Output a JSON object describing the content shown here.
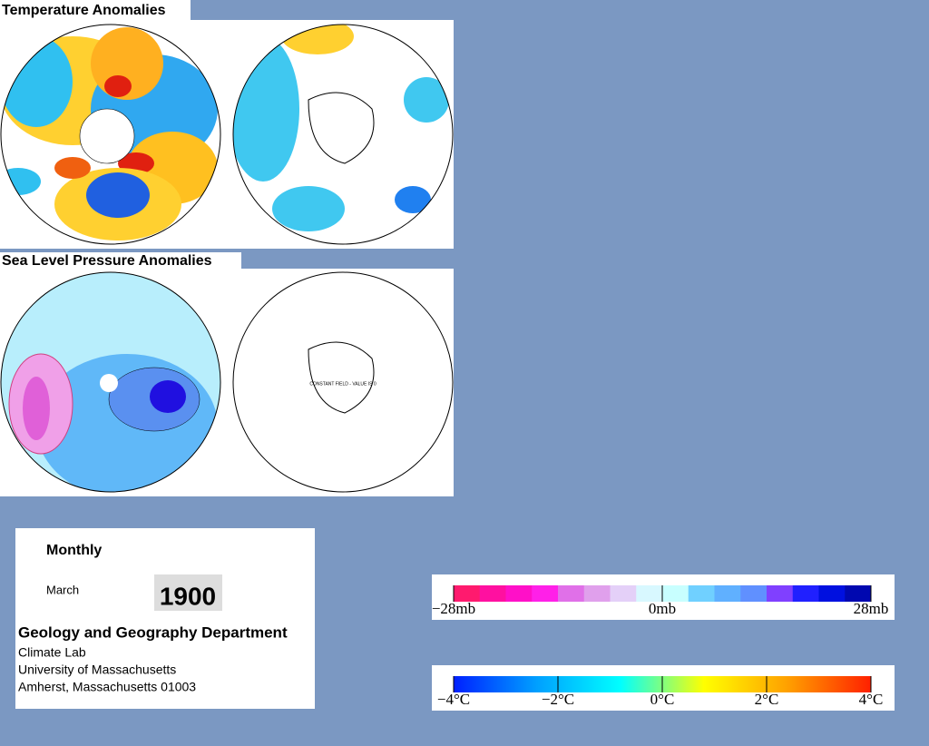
{
  "panels": [
    {
      "title": "Temperature Anomalies"
    },
    {
      "title": "Sea Level Pressure Anomalies",
      "note": "CONSTANT FIELD - VALUE IS 0"
    }
  ],
  "info": {
    "period": "Monthly",
    "month": "March",
    "year": "1900",
    "department": "Geology and Geography Department",
    "lines": [
      "Climate Lab",
      "University of Massachusetts",
      "Amherst, Massachusetts 01003"
    ]
  },
  "legends": [
    {
      "name": "pressure",
      "xlim": [
        -28,
        28
      ],
      "colors": [
        "#ff1a6e",
        "#ff10a0",
        "#ff10c8",
        "#ff20e8",
        "#e070e8",
        "#e0a0ec",
        "#e4d0f8",
        "#d8f8ff",
        "#c8ffff",
        "#70d0ff",
        "#60b0ff",
        "#6090ff",
        "#8040ff",
        "#2020ff",
        "#0010e0",
        "#0008b0"
      ],
      "xticks": [
        {
          "value": -28,
          "label": "−28mb"
        },
        {
          "value": 0,
          "label": "0mb"
        },
        {
          "value": 28,
          "label": "28mb"
        }
      ]
    },
    {
      "name": "temperature",
      "xlim": [
        -4,
        4
      ],
      "colors": [
        "#0020ff",
        "#00a0ff",
        "#00ffff",
        "#ffff00",
        "#ffa000",
        "#ff2000"
      ],
      "xticks": [
        {
          "value": -4,
          "label": "−4°C"
        },
        {
          "value": -2,
          "label": "−2°C"
        },
        {
          "value": 0,
          "label": "0°C"
        },
        {
          "value": 2,
          "label": "2°C"
        },
        {
          "value": 4,
          "label": "4°C"
        }
      ]
    }
  ]
}
